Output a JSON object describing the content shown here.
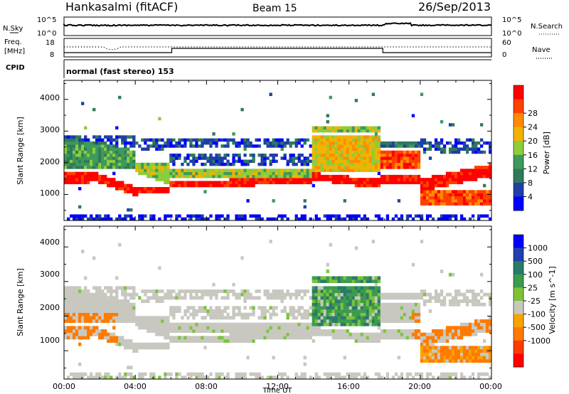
{
  "header": {
    "station": "Hankasalmi (fitACF)",
    "beam": "Beam 15",
    "date": "26/Sep/2013"
  },
  "strip_nsky": {
    "left_label": "N.Sky",
    "right_label": "N.Search",
    "left_ticks": [
      "10^5",
      "10^0"
    ],
    "right_ticks": [
      "10^5",
      "10^0"
    ]
  },
  "strip_freq": {
    "left_label_1": "Freq.",
    "left_label_2": "[MHz]",
    "right_label": "Nave",
    "left_ticks": [
      "18",
      "8"
    ],
    "right_ticks": [
      "60",
      "0"
    ]
  },
  "strip_cpid": {
    "label": "CPID",
    "text": "normal (fast stereo) 153"
  },
  "xaxis": {
    "label": "Time UT",
    "ticks": [
      "00:00",
      "04:00",
      "08:00",
      "12:00",
      "16:00",
      "20:00",
      "00:00"
    ]
  },
  "colors": {
    "power": [
      "#0000ff",
      "#1e3fa8",
      "#2f7a5a",
      "#3d9a5a",
      "#8dcc3a",
      "#f0b400",
      "#ff8c00",
      "#ff4000",
      "#ff0000"
    ],
    "velocity": [
      "#0000ff",
      "#2040b0",
      "#2a7a6a",
      "#3c9c4c",
      "#7cc33a",
      "#c8c8c0",
      "#f8a300",
      "#ff7a00",
      "#ff3a00",
      "#ff0000"
    ]
  },
  "chart_data": [
    {
      "type": "heatmap",
      "name": "power",
      "ylabel": "Slant Range [km]",
      "ylim": [
        180,
        4600
      ],
      "yticks": [
        "1000",
        "2000",
        "3000",
        "4000"
      ],
      "colorbar_label": "Power [dB]",
      "colorbar_ticks": [
        "4",
        "8",
        "12",
        "16",
        "20",
        "24",
        "28"
      ],
      "xlim_hours": [
        0,
        24
      ]
    },
    {
      "type": "heatmap",
      "name": "velocity",
      "ylabel": "Slant Range [km]",
      "ylim": [
        180,
        4600
      ],
      "yticks": [
        "1000",
        "2000",
        "3000",
        "4000"
      ],
      "colorbar_label": "Velocity [m s^-1]",
      "colorbar_ticks": [
        "1000",
        "500",
        "100",
        "25",
        "-25",
        "-100",
        "-500",
        "-1000"
      ],
      "xlim_hours": [
        0,
        24
      ]
    }
  ]
}
